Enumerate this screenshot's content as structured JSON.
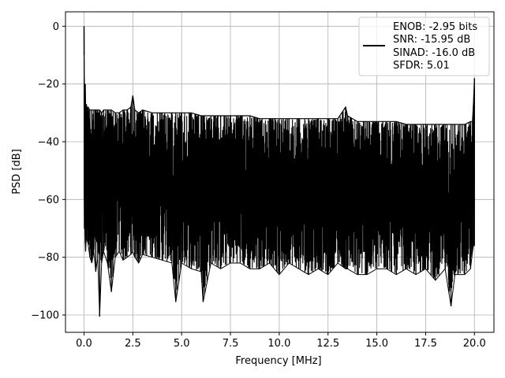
{
  "chart_data": {
    "type": "line",
    "title": "",
    "xlabel": "Frequency [MHz]",
    "ylabel": "PSD [dB]",
    "xlim": [
      -0.95,
      21.0
    ],
    "ylim": [
      -106,
      5
    ],
    "xticks": [
      0.0,
      2.5,
      5.0,
      7.5,
      10.0,
      12.5,
      15.0,
      17.5,
      20.0
    ],
    "xtick_labels": [
      "0.0",
      "2.5",
      "5.0",
      "7.5",
      "10.0",
      "12.5",
      "15.0",
      "17.5",
      "20.0"
    ],
    "yticks": [
      0,
      -20,
      -40,
      -60,
      -80,
      -100
    ],
    "ytick_labels": [
      "0",
      "−20",
      "−40",
      "−60",
      "−80",
      "−100"
    ],
    "grid": true,
    "line_color": "#000000",
    "legend": {
      "placement": "top-right",
      "entries": [
        "ENOB: -2.95 bits",
        "SNR: -15.95 dB",
        "SINAD: -16.0 dB",
        "SFDR: 5.01"
      ]
    },
    "series": [
      {
        "x": [
          0.0,
          0.01,
          0.02,
          0.04,
          0.06,
          0.08,
          0.1,
          0.12,
          0.15,
          0.2,
          0.3,
          0.4,
          0.5,
          0.6,
          0.7,
          0.8,
          0.9,
          1.0,
          1.2,
          1.4,
          1.6,
          1.8,
          2.0,
          2.2,
          2.4,
          2.5,
          2.6,
          2.8,
          3.0,
          3.5,
          4.0,
          4.5,
          4.7,
          5.0,
          5.5,
          6.0,
          6.1,
          6.5,
          7.0,
          7.5,
          8.0,
          8.5,
          9.0,
          9.5,
          10.0,
          10.5,
          11.0,
          11.5,
          12.0,
          12.5,
          13.0,
          13.4,
          13.5,
          14.0,
          14.5,
          15.0,
          15.5,
          16.0,
          16.5,
          17.0,
          17.5,
          18.0,
          18.5,
          18.8,
          19.0,
          19.5,
          19.8,
          19.9,
          19.95,
          20.0
        ],
        "upper": [
          0.0,
          -18,
          -27,
          -22,
          -20,
          -27,
          -28,
          -27,
          -29,
          -28,
          -29,
          -29,
          -29,
          -29,
          -29,
          -29,
          -30,
          -29,
          -29,
          -29,
          -30,
          -30,
          -29,
          -29,
          -28,
          -24,
          -29,
          -30,
          -29,
          -30,
          -30,
          -30,
          -30,
          -30,
          -30,
          -31,
          -31,
          -31,
          -31,
          -31,
          -31,
          -31,
          -32,
          -32,
          -32,
          -32,
          -32,
          -32,
          -32,
          -32,
          -32,
          -28,
          -31,
          -33,
          -33,
          -33,
          -33,
          -33,
          -34,
          -34,
          -34,
          -34,
          -34,
          -34,
          -34,
          -34,
          -33,
          -33,
          -27,
          -18
        ],
        "lower": [
          -10,
          -60,
          -70,
          -70,
          -75,
          -78,
          -75,
          -72,
          -74,
          -75,
          -80,
          -82,
          -78,
          -85,
          -80,
          -100.5,
          -82,
          -78,
          -82,
          -92,
          -80,
          -78,
          -81,
          -80,
          -79,
          -78,
          -80,
          -82,
          -79,
          -80,
          -81,
          -82,
          -95.5,
          -82,
          -84,
          -85,
          -95.5,
          -82,
          -84,
          -82,
          -82,
          -84,
          -84,
          -82,
          -86,
          -82,
          -84,
          -86,
          -84,
          -86,
          -82,
          -84,
          -84,
          -86,
          -86,
          -84,
          -84,
          -86,
          -84,
          -86,
          -84,
          -88,
          -84,
          -97,
          -86,
          -86,
          -84,
          -78,
          -76,
          -76
        ]
      }
    ]
  }
}
